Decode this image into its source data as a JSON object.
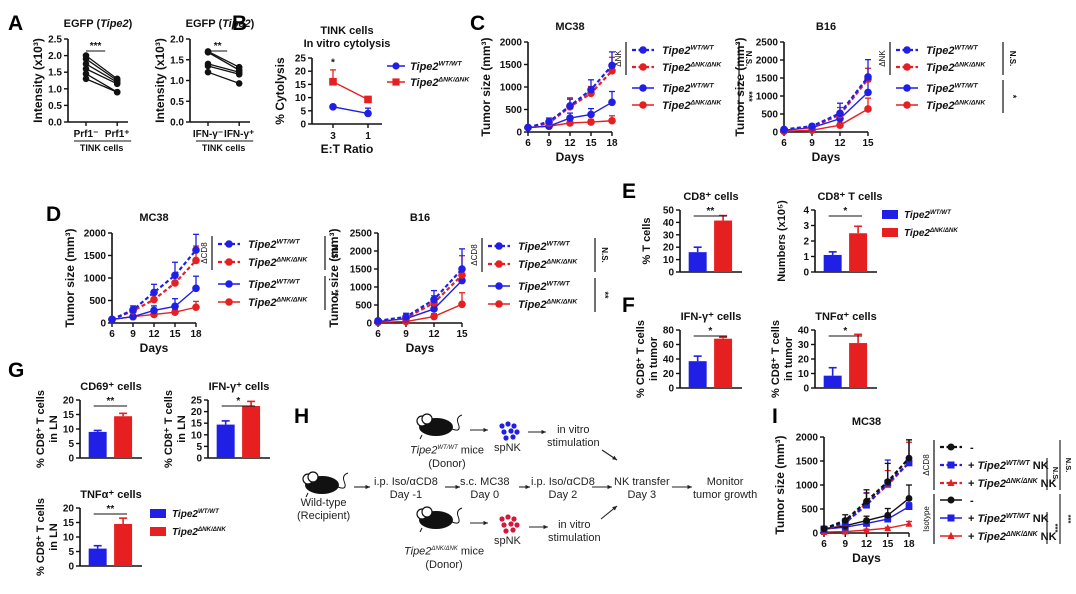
{
  "figure": {
    "panel_labels": [
      "A",
      "B",
      "C",
      "D",
      "E",
      "F",
      "G",
      "H",
      "I"
    ],
    "colors": {
      "wt": "#1f1fe6",
      "nk": "#e62020",
      "black": "#111111"
    },
    "legend_labels": {
      "wt": "Tipe2",
      "wt_sup": "WT/WT",
      "nk": "Tipe2",
      "nk_sup": "ΔNK/ΔNK"
    }
  },
  "chart_data": [
    {
      "id": "A1",
      "type": "line",
      "title": "EGFP (Tipe2)",
      "ylabel": "Intensity (x10³)",
      "xgroup_label": "TINK cells",
      "categories": [
        "Prf1⁻",
        "Prf1⁺"
      ],
      "ylim": [
        0,
        2.5
      ],
      "yticks": [
        0,
        0.5,
        1.0,
        1.5,
        2.0,
        2.5
      ],
      "pairs": [
        [
          2.0,
          1.3
        ],
        [
          1.9,
          1.25
        ],
        [
          1.75,
          1.2
        ],
        [
          1.6,
          1.15
        ],
        [
          1.45,
          0.9
        ],
        [
          1.3,
          0.9
        ]
      ],
      "significance": "***"
    },
    {
      "id": "A2",
      "type": "line",
      "title": "EGFP (Tipe2)",
      "ylabel": "Intensity (x10³)",
      "xgroup_label": "TINK cells",
      "categories": [
        "IFN-γ⁻",
        "IFN-γ⁺"
      ],
      "ylim": [
        0,
        2.0
      ],
      "yticks": [
        0,
        0.5,
        1.0,
        1.5,
        2.0
      ],
      "pairs": [
        [
          1.7,
          1.32
        ],
        [
          1.68,
          1.25
        ],
        [
          1.4,
          1.2
        ],
        [
          1.35,
          1.15
        ],
        [
          1.2,
          0.93
        ]
      ],
      "significance": "**"
    },
    {
      "id": "B",
      "type": "line",
      "title": "TINK cells",
      "subtitle": "In vitro cytolysis",
      "ylabel": "% Cytolysis",
      "xlabel": "E:T Ratio",
      "categories": [
        "3",
        "1"
      ],
      "ylim": [
        0,
        25
      ],
      "yticks": [
        0,
        5,
        10,
        15,
        20,
        25
      ],
      "series": [
        {
          "name": "Tipe2 WT/WT",
          "color": "wt",
          "values": [
            6.5,
            4.0
          ],
          "err": [
            0.5,
            2.0
          ]
        },
        {
          "name": "Tipe2 ΔNK/ΔNK",
          "color": "nk",
          "values": [
            16.0,
            9.3
          ],
          "err": [
            4.5,
            0.5
          ]
        }
      ],
      "significance": "*"
    },
    {
      "id": "C1",
      "type": "line",
      "title": "MC38",
      "ylabel": "Tumor size (mm³)",
      "xlabel": "Days",
      "x": [
        6,
        9,
        12,
        15,
        18
      ],
      "ylim": [
        0,
        2000
      ],
      "yticks": [
        0,
        500,
        1000,
        1500,
        2000
      ],
      "series": [
        {
          "name": "Tipe2 WT/WT",
          "group": "ΔNK",
          "color": "wt",
          "dashed": true,
          "values": [
            100,
            230,
            580,
            940,
            1480
          ],
          "err": [
            30,
            80,
            150,
            220,
            300
          ]
        },
        {
          "name": "Tipe2 ΔNK/ΔNK",
          "group": "ΔNK",
          "color": "nk",
          "dashed": true,
          "values": [
            100,
            200,
            560,
            860,
            1360
          ],
          "err": [
            30,
            60,
            200,
            150,
            300
          ]
        },
        {
          "name": "Tipe2 WT/WT",
          "group": "",
          "color": "wt",
          "dashed": false,
          "values": [
            100,
            130,
            310,
            390,
            660
          ],
          "err": [
            20,
            40,
            110,
            130,
            240
          ]
        },
        {
          "name": "Tipe2 ΔNK/ΔNK",
          "group": "",
          "color": "nk",
          "dashed": false,
          "values": [
            100,
            130,
            200,
            220,
            250
          ],
          "err": [
            20,
            20,
            40,
            60,
            110
          ]
        }
      ],
      "group_label": "ΔNK",
      "stats": [
        "N.S.",
        "***"
      ]
    },
    {
      "id": "C2",
      "type": "line",
      "title": "B16",
      "ylabel": "Tumor size (mm³)",
      "xlabel": "Days",
      "x": [
        6,
        9,
        12,
        15
      ],
      "ylim": [
        0,
        2500
      ],
      "yticks": [
        0,
        500,
        1000,
        1500,
        2000,
        2500
      ],
      "series": [
        {
          "name": "Tipe2 WT/WT",
          "group": "ΔNK",
          "color": "wt",
          "dashed": true,
          "values": [
            70,
            160,
            520,
            1530
          ],
          "err": [
            20,
            40,
            280,
            480
          ]
        },
        {
          "name": "Tipe2 ΔNK/ΔNK",
          "group": "ΔNK",
          "color": "nk",
          "dashed": true,
          "values": [
            60,
            140,
            480,
            1470
          ],
          "err": [
            20,
            40,
            200,
            300
          ]
        },
        {
          "name": "Tipe2 WT/WT",
          "group": "",
          "color": "wt",
          "dashed": false,
          "values": [
            50,
            120,
            370,
            1100
          ],
          "err": [
            20,
            30,
            100,
            300
          ]
        },
        {
          "name": "Tipe2 ΔNK/ΔNK",
          "group": "",
          "color": "nk",
          "dashed": false,
          "values": [
            20,
            50,
            190,
            640
          ],
          "err": [
            10,
            20,
            60,
            300
          ]
        }
      ],
      "group_label": "ΔNK",
      "stats": [
        "N.S.",
        "*"
      ]
    },
    {
      "id": "D1",
      "type": "line",
      "title": "MC38",
      "ylabel": "Tumor size (mm³)",
      "xlabel": "Days",
      "x": [
        6,
        9,
        12,
        15,
        18
      ],
      "ylim": [
        0,
        2000
      ],
      "yticks": [
        0,
        500,
        1000,
        1500,
        2000
      ],
      "series": [
        {
          "name": "Tipe2 WT/WT",
          "group": "ΔCD8",
          "color": "wt",
          "dashed": true,
          "values": [
            80,
            290,
            680,
            1060,
            1620
          ],
          "err": [
            20,
            90,
            180,
            290,
            350
          ]
        },
        {
          "name": "Tipe2 ΔNK/ΔNK",
          "group": "ΔCD8",
          "color": "nk",
          "dashed": true,
          "values": [
            80,
            270,
            520,
            890,
            1390
          ],
          "err": [
            20,
            60,
            120,
            150,
            320
          ]
        },
        {
          "name": "Tipe2 WT/WT",
          "group": "",
          "color": "wt",
          "dashed": false,
          "values": [
            80,
            140,
            280,
            370,
            770
          ],
          "err": [
            20,
            30,
            100,
            170,
            270
          ]
        },
        {
          "name": "Tipe2 ΔNK/ΔNK",
          "group": "",
          "color": "nk",
          "dashed": false,
          "values": [
            80,
            140,
            190,
            240,
            350
          ],
          "err": [
            20,
            20,
            40,
            60,
            130
          ]
        }
      ],
      "group_label": "ΔCD8",
      "stats": [
        "N.S.",
        "**"
      ]
    },
    {
      "id": "D2",
      "type": "line",
      "title": "B16",
      "ylabel": "Tumor size (mm³)",
      "xlabel": "Days",
      "x": [
        6,
        9,
        12,
        15
      ],
      "ylim": [
        0,
        2500
      ],
      "yticks": [
        0,
        500,
        1000,
        1500,
        2000,
        2500
      ],
      "series": [
        {
          "name": "Tipe2 WT/WT",
          "group": "ΔCD8",
          "color": "wt",
          "dashed": true,
          "values": [
            60,
            170,
            650,
            1500
          ],
          "err": [
            20,
            100,
            250,
            560
          ]
        },
        {
          "name": "Tipe2 ΔNK/ΔNK",
          "group": "ΔCD8",
          "color": "nk",
          "dashed": true,
          "values": [
            50,
            140,
            560,
            1330
          ],
          "err": [
            20,
            60,
            200,
            540
          ]
        },
        {
          "name": "Tipe2 WT/WT",
          "group": "",
          "color": "wt",
          "dashed": false,
          "values": [
            40,
            120,
            390,
            1180
          ],
          "err": [
            10,
            30,
            100,
            300
          ]
        },
        {
          "name": "Tipe2 ΔNK/ΔNK",
          "group": "",
          "color": "nk",
          "dashed": false,
          "values": [
            20,
            40,
            180,
            520
          ],
          "err": [
            10,
            20,
            80,
            320
          ]
        }
      ],
      "group_label": "ΔCD8",
      "stats": [
        "N.S.",
        "**"
      ]
    },
    {
      "id": "E1",
      "type": "bar",
      "title": "CD8⁺ cells",
      "ylabel": "% T cells",
      "categories": [
        "Tipe2 WT/WT",
        "Tipe2 ΔNK/ΔNK"
      ],
      "values": [
        16,
        41.5
      ],
      "err": [
        4,
        4
      ],
      "ylim": [
        0,
        50
      ],
      "yticks": [
        0,
        10,
        20,
        30,
        40,
        50
      ],
      "significance": "**"
    },
    {
      "id": "E2",
      "type": "bar",
      "title": "CD8⁺ T cells",
      "ylabel": "Numbers (x10⁵)",
      "categories": [
        "Tipe2 WT/WT",
        "Tipe2 ΔNK/ΔNK"
      ],
      "values": [
        1.1,
        2.5
      ],
      "err": [
        0.2,
        0.45
      ],
      "ylim": [
        0,
        4
      ],
      "yticks": [
        0,
        1,
        2,
        3,
        4
      ],
      "significance": "*"
    },
    {
      "id": "F1",
      "type": "bar",
      "title": "IFN-γ⁺ cells",
      "ylabel": "% CD8⁺ T cells in tumor",
      "categories": [
        "Tipe2 WT/WT",
        "Tipe2 ΔNK/ΔNK"
      ],
      "values": [
        37,
        68
      ],
      "err": [
        7,
        2
      ],
      "ylim": [
        0,
        80
      ],
      "yticks": [
        0,
        20,
        40,
        60,
        80
      ],
      "significance": "*"
    },
    {
      "id": "F2",
      "type": "bar",
      "title": "TNFα⁺ cells",
      "ylabel": "% CD8⁺ T cells in tumor",
      "categories": [
        "Tipe2 WT/WT",
        "Tipe2 ΔNK/ΔNK"
      ],
      "values": [
        8.5,
        31
      ],
      "err": [
        5.5,
        6
      ],
      "ylim": [
        0,
        40
      ],
      "yticks": [
        0,
        10,
        20,
        30,
        40
      ],
      "significance": "*"
    },
    {
      "id": "G1",
      "type": "bar",
      "title": "CD69⁺ cells",
      "ylabel": "% CD8⁺ T cells in LN",
      "categories": [
        "Tipe2 WT/WT",
        "Tipe2 ΔNK/ΔNK"
      ],
      "values": [
        9,
        14.4
      ],
      "err": [
        0.5,
        1
      ],
      "ylim": [
        0,
        20
      ],
      "yticks": [
        0,
        5,
        10,
        15,
        20
      ],
      "significance": "**"
    },
    {
      "id": "G2",
      "type": "bar",
      "title": "IFN-γ⁺ cells",
      "ylabel": "% CD8⁺ T cells in LN",
      "categories": [
        "Tipe2 WT/WT",
        "Tipe2 ΔNK/ΔNK"
      ],
      "values": [
        14.4,
        22.4
      ],
      "err": [
        1.6,
        2
      ],
      "ylim": [
        0,
        25
      ],
      "yticks": [
        0,
        5,
        10,
        15,
        20,
        25
      ],
      "significance": "*"
    },
    {
      "id": "G3",
      "type": "bar",
      "title": "TNFα⁺ cells",
      "ylabel": "% CD8⁺ T cells in LN",
      "categories": [
        "Tipe2 WT/WT",
        "Tipe2 ΔNK/ΔNK"
      ],
      "values": [
        6,
        14.5
      ],
      "err": [
        1,
        2
      ],
      "ylim": [
        0,
        20
      ],
      "yticks": [
        0,
        5,
        10,
        15,
        20
      ],
      "significance": "**"
    },
    {
      "id": "I",
      "type": "line",
      "title": "MC38",
      "ylabel": "Tumor size (mm³)",
      "xlabel": "Days",
      "x": [
        6,
        9,
        12,
        15,
        18
      ],
      "ylim": [
        0,
        2000
      ],
      "yticks": [
        0,
        500,
        1000,
        1500,
        2000
      ],
      "series": [
        {
          "name": "-",
          "group": "ΔCD8",
          "color": "black",
          "marker": "circle",
          "dashed": true,
          "values": [
            90,
            260,
            660,
            1070,
            1560
          ],
          "err": [
            30,
            120,
            240,
            380,
            380
          ]
        },
        {
          "name": "+ Tipe2 WT/WT NK",
          "group": "ΔCD8",
          "color": "wt",
          "marker": "square",
          "dashed": true,
          "values": [
            80,
            220,
            580,
            1040,
            1460
          ],
          "err": [
            30,
            80,
            250,
            480,
            480
          ]
        },
        {
          "name": "+ Tipe2 ΔNK/ΔNK NK",
          "group": "ΔCD8",
          "color": "nk",
          "marker": "triangle",
          "dashed": true,
          "values": [
            70,
            200,
            620,
            1000,
            1470
          ],
          "err": [
            20,
            60,
            220,
            300,
            420
          ]
        },
        {
          "name": "-",
          "group": "Isotype",
          "color": "black",
          "marker": "circle",
          "dashed": false,
          "values": [
            90,
            150,
            260,
            370,
            720
          ],
          "err": [
            20,
            40,
            90,
            140,
            280
          ]
        },
        {
          "name": "+ Tipe2 WT/WT NK",
          "group": "Isotype",
          "color": "wt",
          "marker": "square",
          "dashed": false,
          "values": [
            80,
            120,
            200,
            290,
            550
          ],
          "err": [
            20,
            30,
            40,
            60,
            80
          ]
        },
        {
          "name": "+ Tipe2 ΔNK/ΔNK NK",
          "group": "Isotype",
          "color": "nk",
          "marker": "triangle",
          "dashed": false,
          "values": [
            20,
            30,
            60,
            100,
            190
          ],
          "err": [
            10,
            10,
            20,
            20,
            50
          ]
        }
      ],
      "group_labels": [
        "ΔCD8",
        "Isotype"
      ],
      "stats": [
        "N.S.",
        "N.S.",
        "***",
        "***"
      ]
    }
  ],
  "diagram_H": {
    "donor_top": {
      "label_pre": "Tipe2",
      "label_sup": "WT/WT",
      "label_post": " mice",
      "sub": "(Donor)"
    },
    "donor_bottom": {
      "label_pre": "Tipe2",
      "label_sup": "ΔNK/ΔNK",
      "label_post": " mice",
      "sub": "(Donor)"
    },
    "recipient": {
      "line1": "Wild-type",
      "line2": "(Recipient)"
    },
    "spnk": "spNK",
    "stimulation": {
      "line1": "in vitro",
      "line2": "stimulation"
    },
    "steps": [
      {
        "line1": "i.p. Iso/αCD8",
        "line2": "Day -1"
      },
      {
        "line1": "s.c. MC38",
        "line2": "Day 0"
      },
      {
        "line1": "i.p. Iso/αCD8",
        "line2": "Day 2"
      },
      {
        "line1": "NK transfer",
        "line2": "Day 3"
      },
      {
        "line1": "Monitor",
        "line2": "tumor growth"
      }
    ]
  }
}
